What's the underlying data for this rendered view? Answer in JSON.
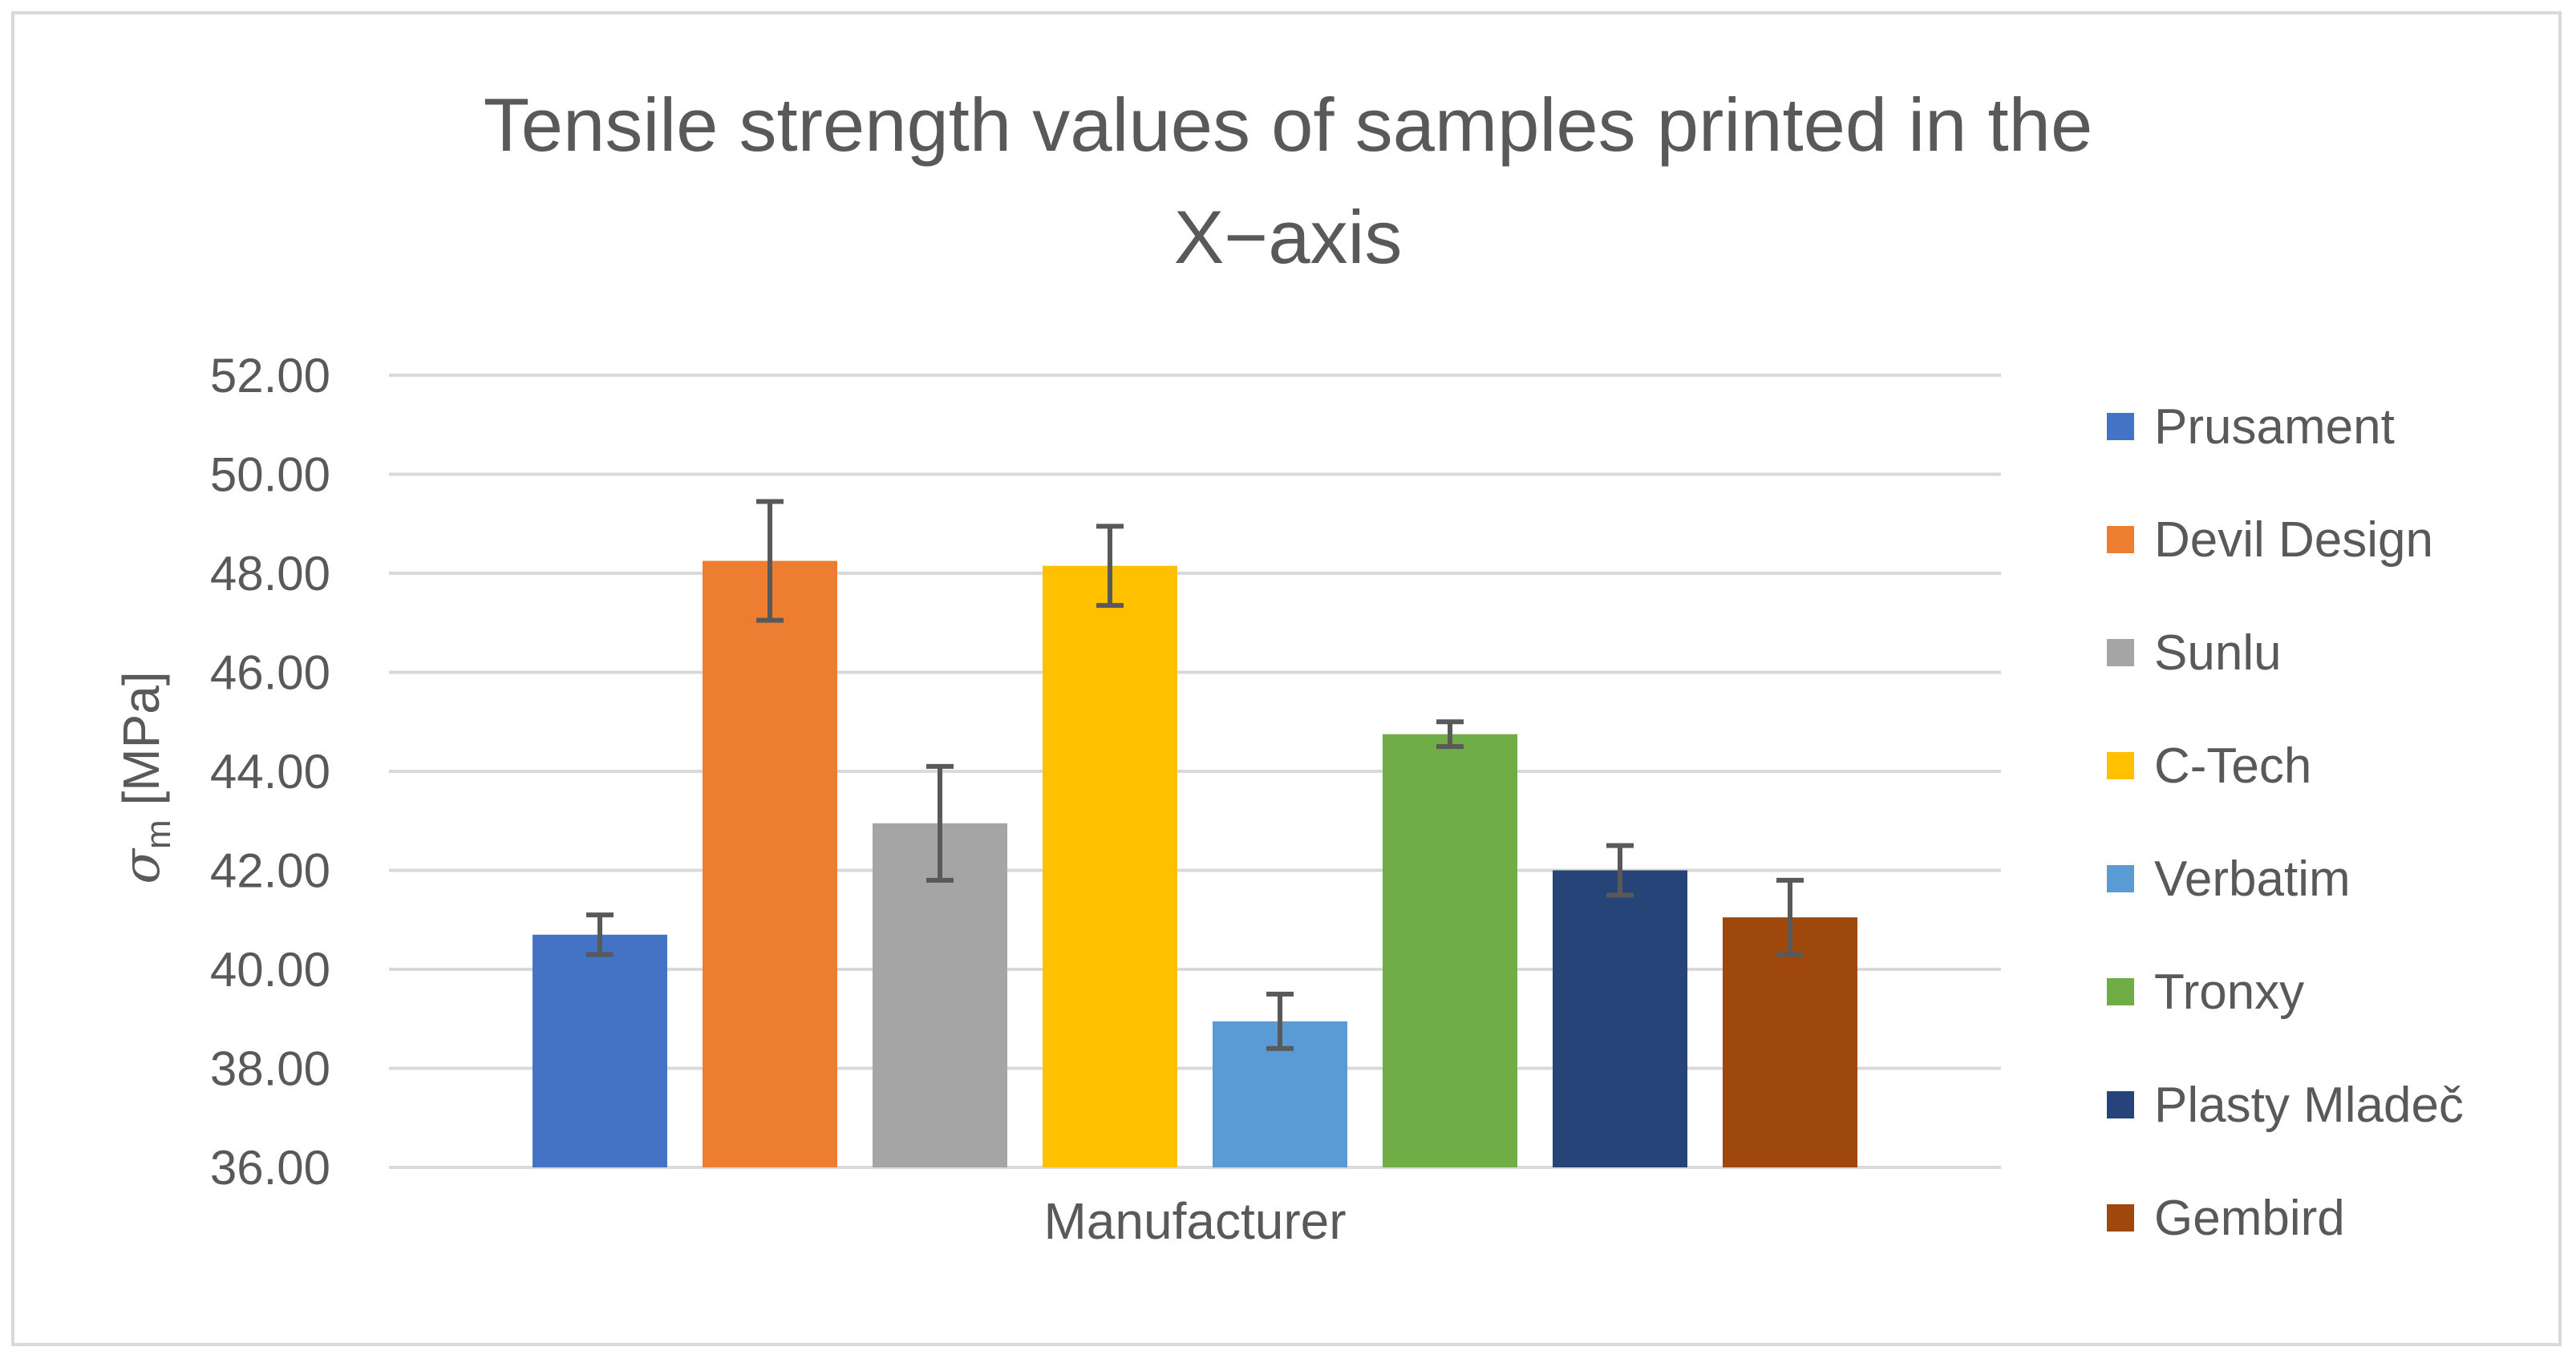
{
  "chart_data": {
    "type": "bar",
    "title_lines": [
      "Tensile strength values of samples printed in the",
      "X−axis"
    ],
    "xlabel": "Manufacturer",
    "ylabel": {
      "symbol": "σ",
      "subscript": "m",
      "unit": " [MPa]"
    },
    "ylim": [
      36,
      52
    ],
    "yticks": [
      36,
      38,
      40,
      42,
      44,
      46,
      48,
      50,
      52
    ],
    "ytick_decimals": 2,
    "grid": true,
    "legend_position": "right",
    "series": [
      {
        "name": "Prusament",
        "value": 40.7,
        "error": 0.4,
        "color": "#4472c4"
      },
      {
        "name": "Devil Design",
        "value": 48.25,
        "error": 1.2,
        "color": "#ed7d31"
      },
      {
        "name": "Sunlu",
        "value": 42.95,
        "error": 1.15,
        "color": "#a5a5a5"
      },
      {
        "name": "C-Tech",
        "value": 48.15,
        "error": 0.8,
        "color": "#ffc000"
      },
      {
        "name": "Verbatim",
        "value": 38.95,
        "error": 0.55,
        "color": "#5b9bd5"
      },
      {
        "name": "Tronxy",
        "value": 44.75,
        "error": 0.25,
        "color": "#70ad47"
      },
      {
        "name": "Plasty Mladeč",
        "value": 42.0,
        "error": 0.5,
        "color": "#264478"
      },
      {
        "name": "Gembird",
        "value": 41.05,
        "error": 0.75,
        "color": "#9e480e"
      }
    ],
    "colors": {
      "gridline": "#d9d9d9",
      "error_bar": "#595959",
      "text": "#595959",
      "border": "#d9d9d9"
    }
  }
}
